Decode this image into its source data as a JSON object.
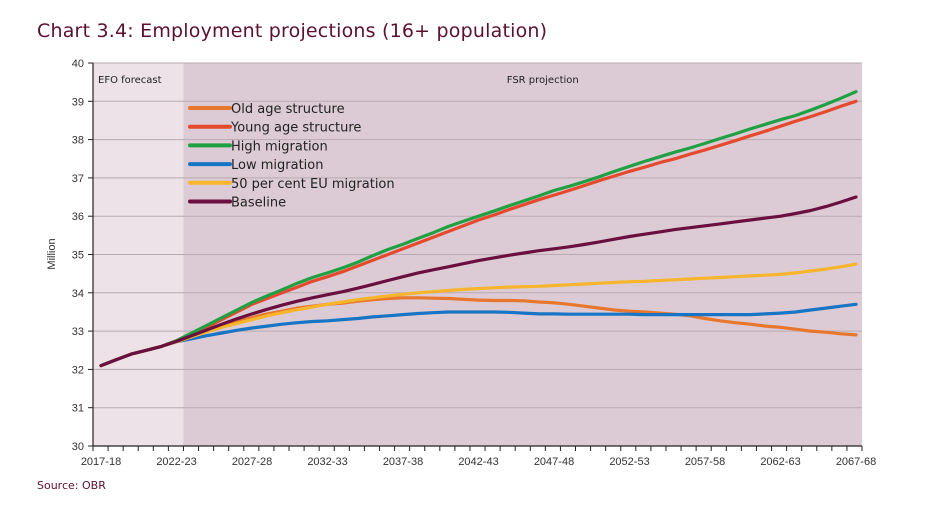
{
  "chart_data": {
    "type": "line",
    "title": "Chart 3.4: Employment projections (16+ population)",
    "source": "Source: OBR",
    "xlabel": "",
    "ylabel": "Million",
    "ylim": [
      30,
      40
    ],
    "yticks": [
      30,
      31,
      32,
      33,
      34,
      35,
      36,
      37,
      38,
      39,
      40
    ],
    "grid": true,
    "legend_position": "top-left",
    "x_tick_labels": [
      "2017-18",
      "2022-23",
      "2027-28",
      "2032-33",
      "2037-38",
      "2042-43",
      "2047-48",
      "2052-53",
      "2057-58",
      "2062-63",
      "2067-68"
    ],
    "regions": [
      {
        "label": "EFO forecast",
        "from": "2017-18",
        "to": "2022-23",
        "color": "#ece2e7"
      },
      {
        "label": "FSR projection",
        "from": "2022-23",
        "to": "2067-68",
        "color": "#dccbd4"
      }
    ],
    "x_start_year": 2017,
    "series": [
      {
        "name": "Old age structure",
        "color": "#e8772e",
        "values": [
          32.1,
          32.25,
          32.4,
          32.5,
          32.6,
          32.75,
          32.88,
          33.0,
          33.12,
          33.25,
          33.35,
          33.45,
          33.52,
          33.6,
          33.65,
          33.7,
          33.73,
          33.78,
          33.82,
          33.85,
          33.87,
          33.87,
          33.86,
          33.85,
          33.83,
          33.81,
          33.8,
          33.8,
          33.79,
          33.76,
          33.74,
          33.7,
          33.65,
          33.6,
          33.55,
          33.52,
          33.5,
          33.47,
          33.44,
          33.4,
          33.33,
          33.27,
          33.22,
          33.18,
          33.13,
          33.1,
          33.05,
          33.0,
          32.97,
          32.93,
          32.9
        ]
      },
      {
        "name": "Young age structure",
        "color": "#e64a2e",
        "values": [
          32.1,
          32.25,
          32.4,
          32.5,
          32.6,
          32.75,
          32.92,
          33.1,
          33.3,
          33.5,
          33.7,
          33.85,
          34.0,
          34.15,
          34.3,
          34.42,
          34.55,
          34.7,
          34.85,
          35.0,
          35.15,
          35.3,
          35.45,
          35.6,
          35.75,
          35.9,
          36.03,
          36.17,
          36.3,
          36.43,
          36.55,
          36.67,
          36.8,
          36.93,
          37.05,
          37.17,
          37.28,
          37.4,
          37.5,
          37.62,
          37.73,
          37.85,
          37.97,
          38.1,
          38.22,
          38.35,
          38.48,
          38.6,
          38.73,
          38.87,
          39.0
        ]
      },
      {
        "name": "High migration",
        "color": "#1fa042",
        "values": [
          32.1,
          32.25,
          32.4,
          32.5,
          32.6,
          32.75,
          32.95,
          33.15,
          33.35,
          33.55,
          33.75,
          33.92,
          34.08,
          34.25,
          34.4,
          34.52,
          34.65,
          34.8,
          34.97,
          35.13,
          35.27,
          35.42,
          35.57,
          35.73,
          35.87,
          36.0,
          36.13,
          36.27,
          36.4,
          36.53,
          36.67,
          36.78,
          36.9,
          37.03,
          37.17,
          37.3,
          37.43,
          37.55,
          37.67,
          37.78,
          37.9,
          38.03,
          38.15,
          38.28,
          38.4,
          38.52,
          38.63,
          38.77,
          38.92,
          39.08,
          39.25
        ]
      },
      {
        "name": "Low migration",
        "color": "#1874c4",
        "values": [
          32.1,
          32.25,
          32.4,
          32.5,
          32.6,
          32.72,
          32.8,
          32.88,
          32.95,
          33.02,
          33.08,
          33.13,
          33.18,
          33.22,
          33.25,
          33.27,
          33.3,
          33.33,
          33.37,
          33.4,
          33.43,
          33.46,
          33.48,
          33.5,
          33.5,
          33.5,
          33.5,
          33.49,
          33.47,
          33.45,
          33.45,
          33.44,
          33.44,
          33.44,
          33.44,
          33.44,
          33.43,
          33.43,
          33.43,
          33.43,
          33.43,
          33.43,
          33.43,
          33.43,
          33.45,
          33.47,
          33.5,
          33.55,
          33.6,
          33.65,
          33.7
        ]
      },
      {
        "name": "50 per cent EU migration",
        "color": "#f6b52c",
        "values": [
          32.1,
          32.25,
          32.4,
          32.5,
          32.6,
          32.72,
          32.85,
          32.98,
          33.1,
          33.2,
          33.3,
          33.4,
          33.48,
          33.56,
          33.63,
          33.7,
          33.76,
          33.82,
          33.87,
          33.92,
          33.96,
          34.0,
          34.03,
          34.06,
          34.09,
          34.11,
          34.13,
          34.15,
          34.16,
          34.17,
          34.19,
          34.21,
          34.23,
          34.25,
          34.27,
          34.29,
          34.3,
          34.32,
          34.34,
          34.36,
          34.38,
          34.4,
          34.42,
          34.44,
          34.46,
          34.48,
          34.52,
          34.57,
          34.62,
          34.68,
          34.75
        ]
      },
      {
        "name": "Baseline",
        "color": "#6a0f3f",
        "values": [
          32.1,
          32.25,
          32.4,
          32.5,
          32.6,
          32.73,
          32.88,
          33.03,
          33.18,
          33.32,
          33.45,
          33.57,
          33.68,
          33.78,
          33.87,
          33.95,
          34.03,
          34.12,
          34.22,
          34.32,
          34.42,
          34.52,
          34.6,
          34.68,
          34.76,
          34.84,
          34.91,
          34.98,
          35.04,
          35.1,
          35.15,
          35.2,
          35.26,
          35.33,
          35.4,
          35.47,
          35.53,
          35.59,
          35.65,
          35.7,
          35.75,
          35.8,
          35.85,
          35.9,
          35.95,
          36.0,
          36.07,
          36.15,
          36.25,
          36.37,
          36.5
        ]
      }
    ]
  }
}
